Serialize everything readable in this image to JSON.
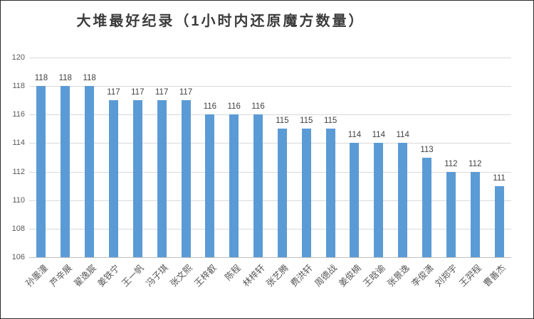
{
  "window": {
    "background": "#ffffff",
    "border_color": "#2b2b2b"
  },
  "chart_data": {
    "type": "bar",
    "title": "大堆最好纪录（1小时内还原魔方数量）",
    "categories": [
      "孙墨潼",
      "芦辛展",
      "翟逸宸",
      "姜铁宁",
      "王一帆",
      "冯子琪",
      "张文熙",
      "王梓叡",
      "陈程",
      "林梓轩",
      "张艺腾",
      "费洪轩",
      "周德战",
      "姜俊楠",
      "王晗谕",
      "张景逸",
      "李俊潇",
      "刘郑宇",
      "王羿程",
      "曹善杰"
    ],
    "values": [
      118,
      118,
      118,
      117,
      117,
      117,
      117,
      116,
      116,
      116,
      115,
      115,
      115,
      114,
      114,
      114,
      113,
      112,
      112,
      111
    ],
    "xlabel": "",
    "ylabel": "",
    "ylim": [
      106,
      120
    ],
    "yticks": [
      106,
      108,
      110,
      112,
      114,
      116,
      118,
      120
    ],
    "grid": true,
    "legend_position": "none",
    "data_labels_shown": true,
    "category_label_rotation_deg": 45,
    "colors": {
      "bar": "#5b9bd5",
      "grid": "#d9d9d9",
      "axis": "#bfbfbf",
      "tick_text": "#595959",
      "value_text": "#404040",
      "title_text": "#3b3b3b"
    }
  }
}
